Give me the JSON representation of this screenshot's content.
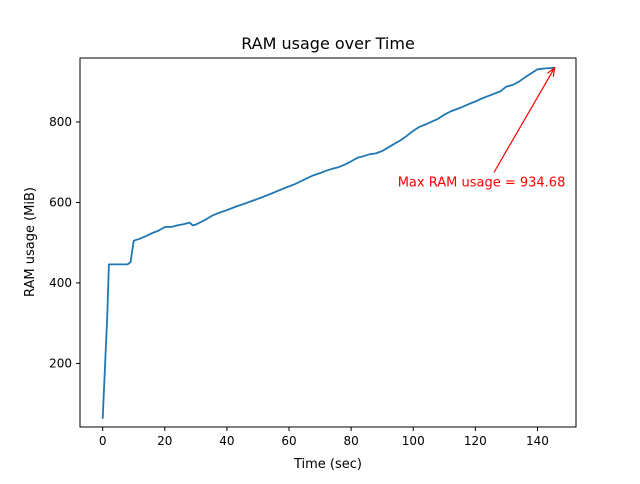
{
  "chart_data": {
    "type": "line",
    "title": "RAM usage over Time",
    "xlabel": "Time (sec)",
    "ylabel": "RAM usage (MiB)",
    "xlim": [
      -7.3,
      152.4
    ],
    "ylim": [
      42,
      959
    ],
    "xticks": [
      0,
      20,
      40,
      60,
      80,
      100,
      120,
      140
    ],
    "xtick_labels": [
      "0",
      "20",
      "40",
      "60",
      "80",
      "100",
      "120",
      "140"
    ],
    "yticks": [
      200,
      400,
      600,
      800
    ],
    "ytick_labels": [
      "200",
      "400",
      "600",
      "800"
    ],
    "grid": false,
    "line_color": "#1f77b4",
    "series": [
      {
        "x": [
          0,
          1.5,
          2,
          4,
          8,
          9,
          10,
          12,
          14,
          16,
          18,
          20,
          22,
          24,
          26,
          28,
          29,
          30,
          31,
          33,
          35,
          37,
          40,
          43,
          46,
          50,
          54,
          58,
          62,
          66,
          68,
          70,
          72,
          74,
          76,
          78,
          80,
          82,
          84,
          86,
          88,
          90,
          92,
          94,
          96,
          98,
          100,
          102,
          104,
          106,
          108,
          110,
          112,
          114,
          116,
          118,
          120,
          122,
          124,
          126,
          128,
          130,
          132,
          134,
          136,
          138,
          140,
          142,
          144,
          145.5
        ],
        "y": [
          64,
          320,
          446,
          446,
          446,
          452,
          505,
          510,
          517,
          524,
          530,
          539,
          539,
          543,
          546,
          550,
          543,
          545,
          549,
          557,
          566,
          573,
          581,
          590,
          598,
          609,
          621,
          634,
          646,
          661,
          668,
          673,
          679,
          684,
          688,
          694,
          702,
          711,
          715,
          720,
          722,
          728,
          737,
          746,
          755,
          766,
          778,
          788,
          794,
          801,
          808,
          818,
          826,
          832,
          838,
          845,
          851,
          858,
          864,
          870,
          876,
          888,
          892,
          900,
          911,
          921,
          931,
          933,
          934,
          934.68
        ]
      }
    ],
    "annotation": {
      "text": "Max RAM usage = 934.68",
      "point": [
        145.5,
        934.68
      ],
      "text_anchor": [
        95,
        640
      ],
      "color": "#ff0000"
    }
  }
}
